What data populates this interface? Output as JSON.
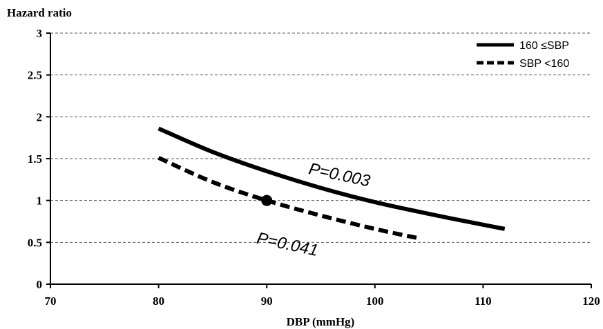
{
  "chart_data": {
    "type": "line",
    "ylabel": "Hazard ratio",
    "xlabel": "DBP (mmHg)",
    "xlim": [
      70,
      120
    ],
    "ylim": [
      0,
      3
    ],
    "x_ticks": [
      70,
      80,
      90,
      100,
      110,
      120
    ],
    "x_tick_labels": [
      "70",
      "80",
      "90",
      "100",
      "110",
      "120"
    ],
    "y_ticks": [
      0,
      0.5,
      1,
      1.5,
      2,
      2.5,
      3
    ],
    "y_tick_labels": [
      "0",
      "0.5",
      "1",
      "1.5",
      "2",
      "2.5",
      "3"
    ],
    "grid": "horizontal dashed",
    "legend_position": "top-right",
    "series": [
      {
        "name": "160 ≤SBP",
        "style": "solid",
        "color": "#000000",
        "x": [
          80,
          85,
          90,
          95,
          100,
          105,
          110,
          112
        ],
        "y": [
          1.86,
          1.58,
          1.35,
          1.15,
          0.98,
          0.84,
          0.71,
          0.66
        ]
      },
      {
        "name": "SBP <160",
        "style": "dashed",
        "color": "#000000",
        "x": [
          80,
          85,
          90,
          95,
          100,
          104
        ],
        "y": [
          1.51,
          1.22,
          1.0,
          0.82,
          0.66,
          0.55
        ]
      }
    ],
    "reference_point": {
      "x": 90,
      "y": 1.0
    },
    "annotations": [
      {
        "text": "P=0.003",
        "x": 93.8,
        "y": 1.32,
        "rotate": 12
      },
      {
        "text": "P=0.041",
        "x": 89,
        "y": 0.49,
        "rotate": 12
      }
    ]
  }
}
